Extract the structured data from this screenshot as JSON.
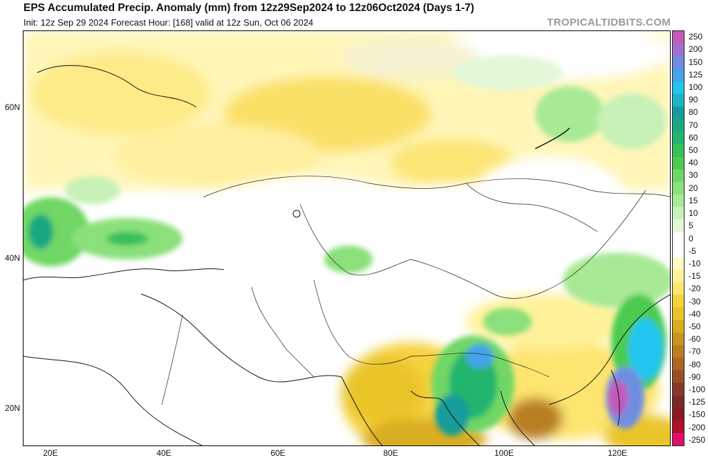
{
  "header": {
    "title": "EPS Accumulated Precip. Anomaly (mm) from 12z29Sep2024 to 12z06Oct2024 (Days 1-7)",
    "subtitle": "Init: 12z Sep 29 2024   Forecast Hour: [168]   valid at 12z Sun, Oct 06 2024",
    "watermark": "TROPICALTIDBITS.COM"
  },
  "map": {
    "lat_labels": [
      "60N",
      "40N",
      "20N"
    ],
    "lon_labels": [
      "20E",
      "40E",
      "60E",
      "80E",
      "100E",
      "120E"
    ]
  },
  "colorbar": {
    "labels": [
      "250",
      "200",
      "150",
      "125",
      "100",
      "90",
      "80",
      "70",
      "60",
      "50",
      "40",
      "30",
      "20",
      "15",
      "10",
      "5",
      "0",
      "-5",
      "-10",
      "-15",
      "-20",
      "-30",
      "-40",
      "-50",
      "-60",
      "-70",
      "-80",
      "-90",
      "-100",
      "-125",
      "-150",
      "-200",
      "-250"
    ],
    "colors": [
      "#c45ab8",
      "#a06fd0",
      "#6f8ee0",
      "#45a3e6",
      "#22c5ee",
      "#1ab6c4",
      "#169c9a",
      "#19a883",
      "#22b56e",
      "#35c05c",
      "#4ccb4f",
      "#6fd765",
      "#8ae07a",
      "#a8e996",
      "#c7f1b7",
      "#e3f8d9",
      "#ffffff",
      "#ffffff",
      "#fff9c8",
      "#fff29a",
      "#fde56f",
      "#f5d240",
      "#eac52a",
      "#d9ad20",
      "#c89620",
      "#b97e22",
      "#aa6624",
      "#984e26",
      "#873a28",
      "#7a2a2a",
      "#8a1a22",
      "#b01028",
      "#e0106a"
    ]
  }
}
